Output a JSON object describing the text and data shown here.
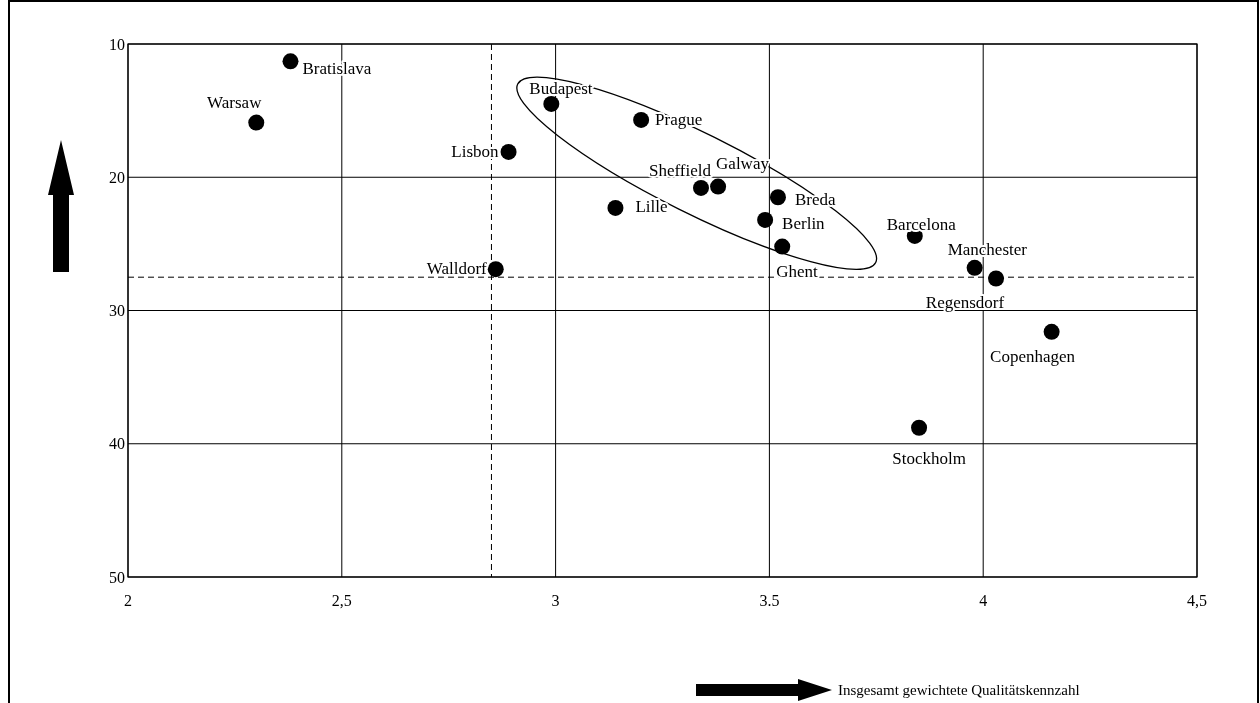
{
  "chart_data": {
    "type": "scatter",
    "xlabel": "Insgesamt gewichtete Qualitätskennzahl",
    "xlim": [
      2,
      4.5
    ],
    "xticks": [
      2,
      {
        "value": 2.5,
        "label": "2,5"
      },
      3,
      3.5,
      4,
      {
        "value": 4.5,
        "label": "4,5"
      }
    ],
    "ylim": [
      50,
      10
    ],
    "yticks": [
      10,
      20,
      30,
      40,
      50
    ],
    "grid": true,
    "marker": "circle",
    "series": [
      {
        "color": "#000000",
        "x": [
          2.38,
          2.3,
          2.99,
          3.2,
          2.89,
          3.34,
          3.38,
          3.14,
          3.52,
          3.49,
          3.53,
          3.84,
          3.98,
          4.03,
          4.16,
          3.85,
          2.86
        ],
        "values": [
          11.3,
          15.9,
          14.5,
          15.7,
          18.1,
          20.8,
          20.7,
          22.3,
          21.5,
          23.2,
          25.2,
          24.4,
          26.8,
          27.6,
          31.6,
          38.8,
          26.9
        ],
        "value_labels": [
          "Bratislava",
          "Warsaw",
          "Budapest",
          "Prague",
          "Lisbon",
          "Sheffield",
          "Galway",
          "Lille",
          "Breda",
          "Berlin",
          "Ghent",
          "Barcelona",
          "Manchester",
          "Regensdorf",
          "Copenhagen",
          "Stockholm",
          "Walldorf"
        ]
      }
    ],
    "ref_lines": [
      {
        "axis": "x",
        "value": 2.85,
        "color": "#000000",
        "line_style": "dashed"
      },
      {
        "axis": "y",
        "value": 27.5,
        "color": "#000000",
        "line_style": "dashed"
      }
    ]
  }
}
